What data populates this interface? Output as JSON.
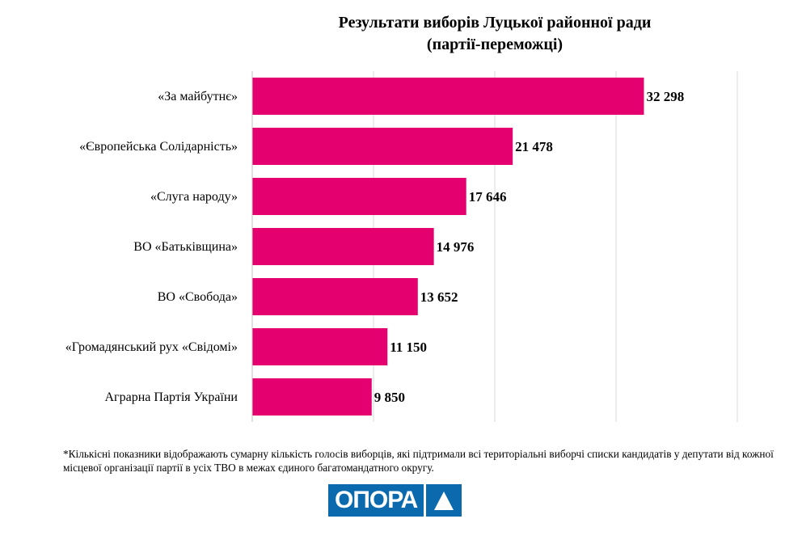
{
  "chart_data": {
    "type": "bar",
    "orientation": "horizontal",
    "title": "Результати виборів Луцької районної ради",
    "subtitle": "(партії-переможці)",
    "categories": [
      "«За майбутнє»",
      "«Європейська Солідарність»",
      "«Слуга народу»",
      "ВО «Батьківщина»",
      "ВО «Свобода»",
      "«Громадянський рух «Свідомі»",
      "Аграрна Партія України"
    ],
    "values": [
      32298,
      21478,
      17646,
      14976,
      13652,
      11150,
      9850
    ],
    "labels": [
      "32 298",
      "21 478",
      "17 646",
      "14 976",
      "13 652",
      "11 150",
      "9 850"
    ],
    "xlim": [
      0,
      40000
    ],
    "grid": true,
    "gridlines": [
      10000,
      20000,
      30000,
      40000
    ],
    "bar_color": "#E5006F"
  },
  "footnote": "*Кількісні показники відображають сумарну кількість голосів виборців, які підтримали всі територіальні виборчі списки кандидатів у депутати від кожної місцевої організації партії в усіх ТВО в межах єдиного багатомандатного округу.",
  "logo": {
    "text": "ОПОРА",
    "color": "#0A6AAD"
  }
}
